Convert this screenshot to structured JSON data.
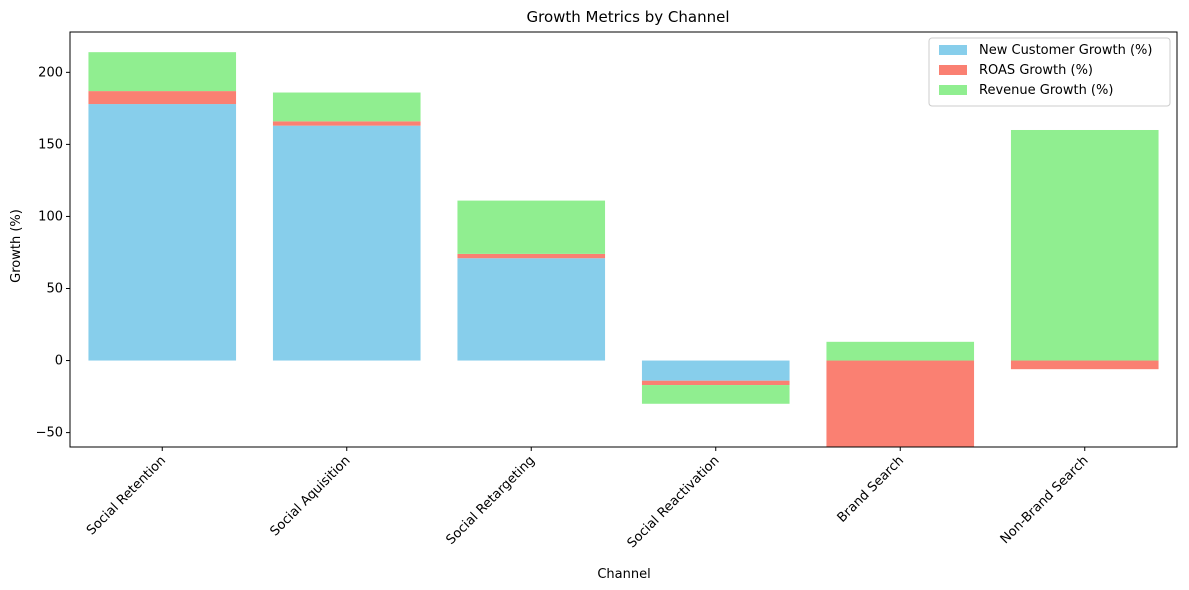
{
  "chart_data": {
    "type": "bar",
    "stacked": true,
    "title": "Growth Metrics by Channel",
    "xlabel": "Channel",
    "ylabel": "Growth (%)",
    "ylim": [
      -60,
      228
    ],
    "yticks": [
      -50,
      0,
      50,
      100,
      150,
      200
    ],
    "categories": [
      "Social Retention",
      "Social Aquisition",
      "Social Retargeting",
      "Social Reactivation",
      "Brand Search",
      "Non-Brand Search"
    ],
    "series": [
      {
        "name": "New Customer Growth (%)",
        "color": "#87CEEB",
        "values": [
          178,
          163,
          71,
          -14,
          0,
          0
        ]
      },
      {
        "name": "ROAS Growth (%)",
        "color": "#FA8072",
        "values": [
          9,
          3,
          3,
          -3,
          -64,
          -6
        ]
      },
      {
        "name": "Revenue Growth (%)",
        "color": "#90EE90",
        "values": [
          27,
          20,
          37,
          -13,
          13,
          160
        ]
      }
    ],
    "grid": false,
    "legend_position": "top-right"
  }
}
